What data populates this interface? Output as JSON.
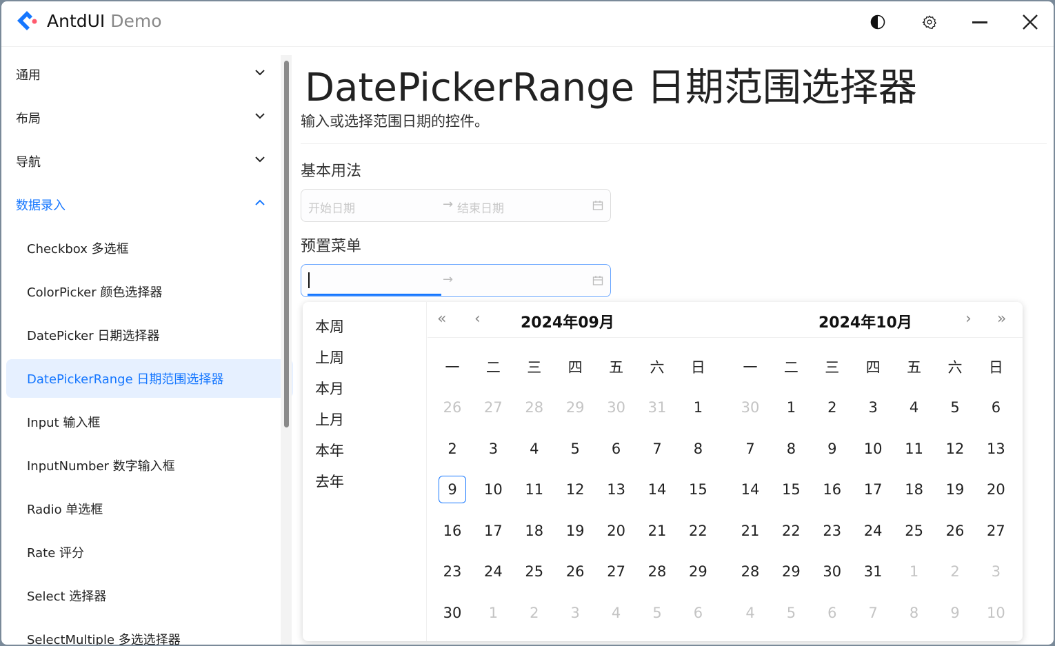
{
  "app": {
    "title": "AntdUI",
    "subtitle": "Demo"
  },
  "titlebar": {
    "icons": [
      "theme-contrast-icon",
      "settings-gear-icon",
      "minimize-icon",
      "close-icon"
    ]
  },
  "sidebar": {
    "items": [
      {
        "label": "通用",
        "type": "group",
        "expanded": false
      },
      {
        "label": "布局",
        "type": "group",
        "expanded": false
      },
      {
        "label": "导航",
        "type": "group",
        "expanded": false
      },
      {
        "label": "数据录入",
        "type": "group",
        "expanded": true
      },
      {
        "label": "Checkbox 多选框",
        "type": "sub"
      },
      {
        "label": "ColorPicker 颜色选择器",
        "type": "sub"
      },
      {
        "label": "DatePicker 日期选择器",
        "type": "sub"
      },
      {
        "label": "DatePickerRange 日期范围选择器",
        "type": "sub",
        "active": true
      },
      {
        "label": "Input 输入框",
        "type": "sub"
      },
      {
        "label": "InputNumber 数字输入框",
        "type": "sub"
      },
      {
        "label": "Radio 单选框",
        "type": "sub"
      },
      {
        "label": "Rate 评分",
        "type": "sub"
      },
      {
        "label": "Select 选择器",
        "type": "sub"
      },
      {
        "label": "SelectMultiple 多选选择器",
        "type": "sub"
      }
    ]
  },
  "main": {
    "title": "DatePickerRange 日期范围选择器",
    "description": "输入或选择范围日期的控件。",
    "basic": {
      "heading": "基本用法",
      "start_placeholder": "开始日期",
      "end_placeholder": "结束日期",
      "separator": "→"
    },
    "preset": {
      "heading": "预置菜单",
      "separator": "→"
    }
  },
  "popup": {
    "presets": [
      "本周",
      "上周",
      "本月",
      "上月",
      "本年",
      "去年"
    ],
    "weekdays": [
      "一",
      "二",
      "三",
      "四",
      "五",
      "六",
      "日"
    ],
    "months": [
      {
        "title": "2024年09月",
        "prev": [
          26,
          27,
          28,
          29,
          30,
          31
        ],
        "days": 30,
        "next": [
          1,
          2,
          3,
          4,
          5,
          6
        ],
        "today": 9
      },
      {
        "title": "2024年10月",
        "prev": [
          30
        ],
        "days": 31,
        "next": [
          1,
          2,
          3,
          4,
          5,
          6,
          7,
          8,
          9,
          10
        ]
      }
    ]
  },
  "colors": {
    "accent": "#1677ff",
    "active_bg": "#e6f0ff"
  }
}
